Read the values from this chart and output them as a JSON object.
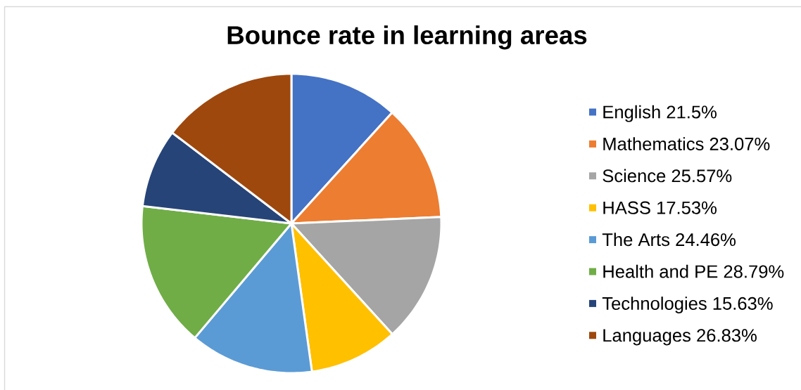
{
  "chart_data": {
    "type": "pie",
    "title": "Bounce rate in learning areas",
    "categories": [
      "English 21.5%",
      "Mathematics 23.07%",
      "Science 25.57%",
      "HASS 17.53%",
      "The Arts 24.46%",
      "Health and PE 28.79%",
      "Technologies 15.63%",
      "Languages 26.83%"
    ],
    "values": [
      21.5,
      23.07,
      25.57,
      17.53,
      24.46,
      28.79,
      15.63,
      26.83
    ],
    "colors": [
      "#4472c4",
      "#ed7d31",
      "#a5a5a5",
      "#ffc000",
      "#5b9bd5",
      "#70ad47",
      "#264478",
      "#9e480e"
    ],
    "legend": "right"
  }
}
